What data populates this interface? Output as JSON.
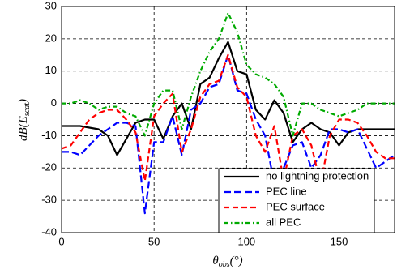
{
  "chart_data": {
    "type": "line",
    "ylabel": {
      "main": "dB(E",
      "sub": "scat",
      "end": ")"
    },
    "xlabel": {
      "main": "θ",
      "sub": "obs",
      "end": "(°)"
    },
    "xlim": [
      0,
      180
    ],
    "ylim": [
      -40,
      30
    ],
    "xticks": [
      0,
      50,
      100,
      150
    ],
    "yticks": [
      -40,
      -30,
      -20,
      -10,
      0,
      10,
      20,
      30
    ],
    "grid": true,
    "legend": "lower right",
    "x": [
      0,
      5,
      10,
      15,
      20,
      25,
      30,
      35,
      40,
      45,
      50,
      55,
      60,
      65,
      70,
      75,
      80,
      85,
      90,
      95,
      100,
      105,
      110,
      115,
      120,
      125,
      130,
      135,
      140,
      145,
      150,
      155,
      160,
      165,
      170,
      175,
      180
    ],
    "series": [
      {
        "name": "no lightning protection",
        "color": "#000000",
        "dash": "none",
        "values": [
          -7,
          -7,
          -7,
          -7.5,
          -8,
          -10,
          -16,
          -11,
          -6,
          -5,
          -5,
          -11,
          -4,
          0,
          -8,
          6,
          8,
          14,
          19,
          10,
          9,
          -2,
          -5,
          1,
          -3,
          -12,
          -8,
          -6,
          -8,
          -9,
          -13,
          -9,
          -8,
          -8,
          -8,
          -8,
          -8
        ]
      },
      {
        "name": "PEC line",
        "color": "#0000ff",
        "dash": "9,4",
        "values": [
          -15,
          -15,
          -16,
          -13,
          -10,
          -8,
          -6,
          -6,
          -7,
          -34,
          -12,
          -12,
          -4,
          -16,
          -2,
          0,
          5,
          6,
          15,
          4,
          3,
          -5,
          -10,
          -25,
          -20,
          -13,
          -12,
          -20,
          -16,
          -8,
          -8,
          -9,
          -8,
          -14,
          -20,
          -18,
          -16
        ]
      },
      {
        "name": "PEC surface",
        "color": "#ff0000",
        "dash": "7,4",
        "values": [
          -14,
          -13,
          -9,
          -5,
          -3,
          -2,
          -2,
          -5,
          -9,
          -24,
          -4,
          0,
          3,
          -15,
          -8,
          2,
          6,
          7,
          15,
          5,
          2,
          -10,
          -15,
          -7,
          -24,
          -10,
          -8,
          -13,
          -25,
          -10,
          -5,
          -5,
          -6,
          -10,
          -15,
          -17,
          -17
        ]
      },
      {
        "name": "all PEC",
        "color": "#00aa00",
        "dash": "6,3,1.5,3",
        "values": [
          0,
          0,
          1,
          0,
          -2,
          -1,
          -1,
          -3,
          -4,
          -10,
          0,
          4,
          4,
          -8,
          2,
          10,
          16,
          20,
          28,
          22,
          12,
          9,
          8,
          6,
          2,
          -10,
          0,
          0,
          -2,
          -3,
          -4,
          -3,
          -2,
          0,
          0,
          0,
          0
        ]
      }
    ]
  }
}
